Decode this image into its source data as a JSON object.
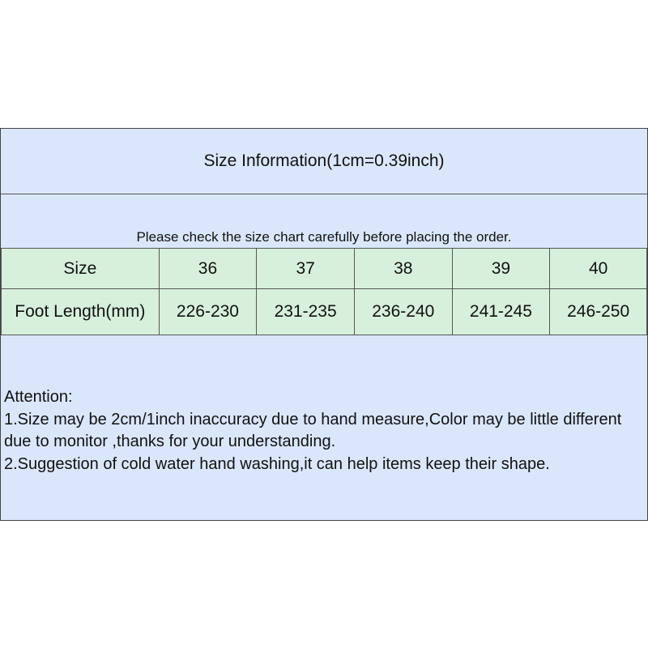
{
  "title": "Size Information(1cm=0.39inch)",
  "notice": "Please check the size chart carefully before placing the order.",
  "table": {
    "rows": [
      {
        "label": "Size",
        "values": [
          "36",
          "37",
          "38",
          "39",
          "40"
        ]
      },
      {
        "label": "Foot Length(mm)",
        "values": [
          "226-230",
          "231-235",
          "236-240",
          "241-245",
          "246-250"
        ]
      }
    ]
  },
  "attention": {
    "heading": "Attention:",
    "line1": "1.Size may be 2cm/1inch inaccuracy due to hand measure,Color may be little different due to monitor ,thanks for your understanding.",
    "line2": "2.Suggestion of cold water hand washing,it can help items keep their shape."
  },
  "colors": {
    "header_bg": "#dae7fb",
    "table_bg": "#d7f0dc"
  }
}
